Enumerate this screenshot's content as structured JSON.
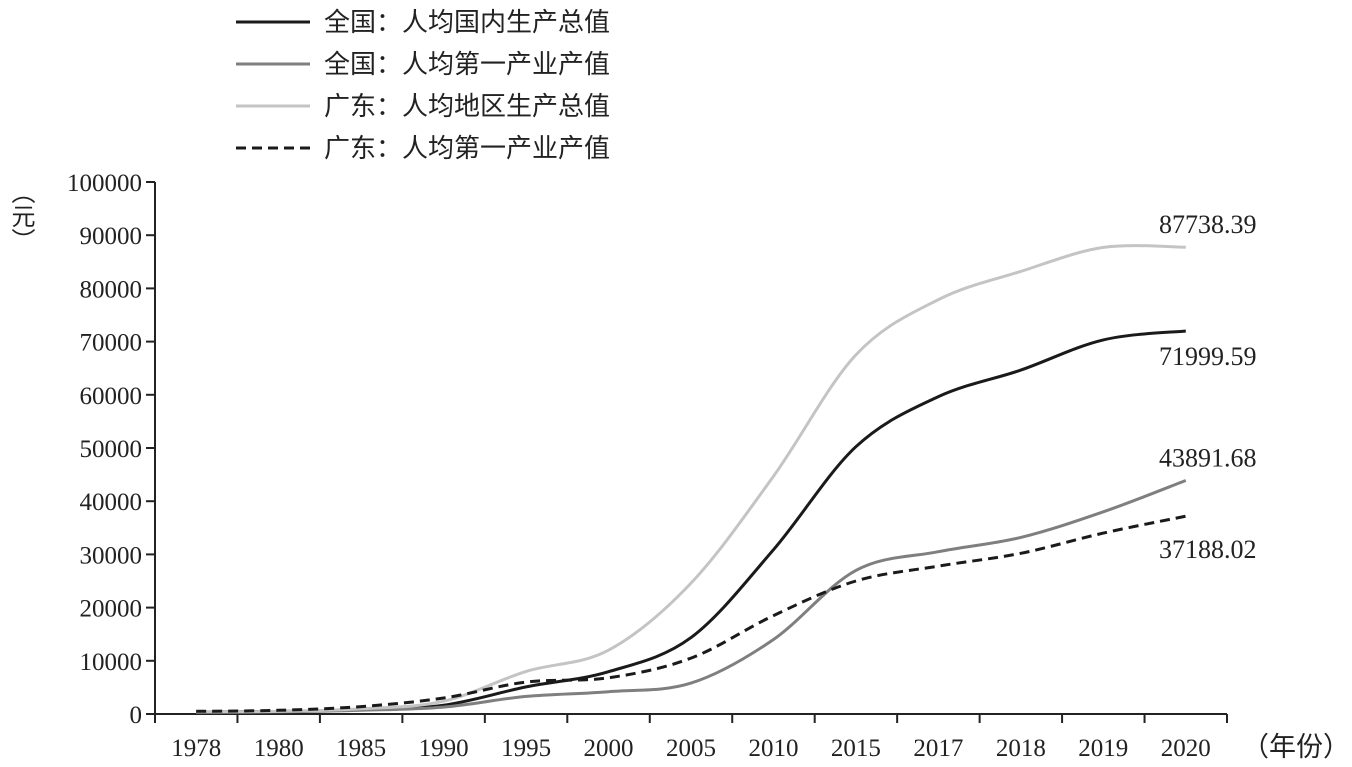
{
  "chart_data": {
    "type": "line",
    "ylabel": "（元）",
    "xlabel": "（年份）",
    "categories": [
      "1978",
      "1980",
      "1985",
      "1990",
      "1995",
      "2000",
      "2005",
      "2010",
      "2015",
      "2017",
      "2018",
      "2019",
      "2020"
    ],
    "yticks": [
      0,
      10000,
      20000,
      30000,
      40000,
      50000,
      60000,
      70000,
      80000,
      90000,
      100000
    ],
    "ylim": [
      0,
      100000
    ],
    "grid": false,
    "legend_position": "top-left",
    "series": [
      {
        "name": "全国：人均国内生产总值",
        "color": "#1a1a1a",
        "dash": "solid",
        "values": [
          385,
          468,
          866,
          1663,
          5091,
          7942,
          14368,
          30876,
          50237,
          59660,
          64644,
          70328,
          71999.59
        ],
        "end_label": "71999.59"
      },
      {
        "name": "全国：人均第一产业产值",
        "color": "#7f7f7f",
        "dash": "solid",
        "values": [
          380,
          420,
          700,
          1300,
          3300,
          4200,
          5800,
          14000,
          27000,
          30500,
          33200,
          38000,
          43891.68
        ],
        "end_label": "43891.68"
      },
      {
        "name": "广东：人均地区生产总值",
        "color": "#c4c4c4",
        "dash": "solid",
        "values": [
          370,
          480,
          980,
          2400,
          8000,
          12000,
          24600,
          44700,
          67500,
          77900,
          83200,
          87700,
          87738.39
        ],
        "end_label": "87738.39"
      },
      {
        "name": "广东：人均第一产业产值",
        "color": "#1a1a1a",
        "dash": "dashed",
        "values": [
          500,
          700,
          1400,
          3000,
          6000,
          6800,
          10500,
          18500,
          25000,
          27800,
          30200,
          34000,
          37188.02
        ],
        "end_label": "37188.02"
      }
    ]
  }
}
